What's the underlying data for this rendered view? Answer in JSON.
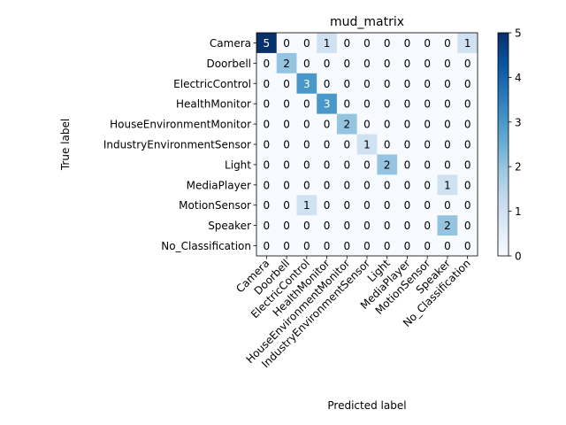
{
  "chart_data": {
    "type": "heatmap",
    "title": "mud_matrix",
    "xlabel": "Predicted label",
    "ylabel": "True label",
    "row_labels": [
      "Camera",
      "Doorbell",
      "ElectricControl",
      "HealthMonitor",
      "HouseEnvironmentMonitor",
      "IndustryEnvironmentSensor",
      "Light",
      "MediaPlayer",
      "MotionSensor",
      "Speaker",
      "No_Classification"
    ],
    "col_labels": [
      "Camera",
      "Doorbell",
      "ElectricControl",
      "HealthMonitor",
      "HouseEnvironmentMonitor",
      "IndustryEnvironmentSensor",
      "Light",
      "MediaPlayer",
      "MotionSensor",
      "Speaker",
      "No_Classification"
    ],
    "values": [
      [
        5,
        0,
        0,
        1,
        0,
        0,
        0,
        0,
        0,
        0,
        1
      ],
      [
        0,
        2,
        0,
        0,
        0,
        0,
        0,
        0,
        0,
        0,
        0
      ],
      [
        0,
        0,
        3,
        0,
        0,
        0,
        0,
        0,
        0,
        0,
        0
      ],
      [
        0,
        0,
        0,
        3,
        0,
        0,
        0,
        0,
        0,
        0,
        0
      ],
      [
        0,
        0,
        0,
        0,
        2,
        0,
        0,
        0,
        0,
        0,
        0
      ],
      [
        0,
        0,
        0,
        0,
        0,
        1,
        0,
        0,
        0,
        0,
        0
      ],
      [
        0,
        0,
        0,
        0,
        0,
        0,
        2,
        0,
        0,
        0,
        0
      ],
      [
        0,
        0,
        0,
        0,
        0,
        0,
        0,
        0,
        0,
        1,
        0
      ],
      [
        0,
        0,
        1,
        0,
        0,
        0,
        0,
        0,
        0,
        0,
        0
      ],
      [
        0,
        0,
        0,
        0,
        0,
        0,
        0,
        0,
        0,
        2,
        0
      ],
      [
        0,
        0,
        0,
        0,
        0,
        0,
        0,
        0,
        0,
        0,
        0
      ]
    ],
    "vmin": 0,
    "vmax": 5,
    "colormap": "Blues",
    "colorbar_ticks": [
      0,
      1,
      2,
      3,
      4,
      5
    ],
    "text_color_dark": "#000000",
    "text_color_light": "#ffffff"
  }
}
